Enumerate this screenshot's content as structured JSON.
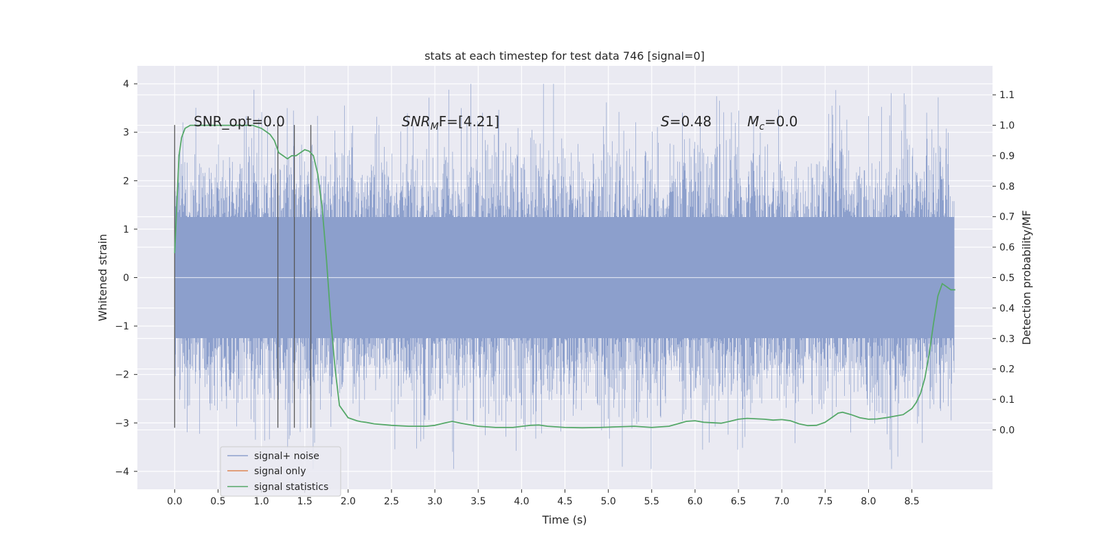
{
  "chart_data": {
    "type": "line",
    "title": "stats at each timestep for test data 746 [signal=0]",
    "xlabel": "Time (s)",
    "ylabel": "Whitened strain",
    "y2label": "Detection probability/MF",
    "xlim": [
      -0.43,
      9.43
    ],
    "ylim": [
      -4.37,
      4.37
    ],
    "y2lim": [
      -0.195,
      1.195
    ],
    "xticks": [
      "0.0",
      "0.5",
      "1.0",
      "1.5",
      "2.0",
      "2.5",
      "3.0",
      "3.5",
      "4.0",
      "4.5",
      "5.0",
      "5.5",
      "6.0",
      "6.5",
      "7.0",
      "7.5",
      "8.0",
      "8.5"
    ],
    "yticks": [
      "4",
      "3",
      "2",
      "1",
      "0",
      "−1",
      "−2",
      "−3",
      "−4"
    ],
    "y2ticks": [
      "1.1",
      "1.0",
      "0.9",
      "0.8",
      "0.7",
      "0.6",
      "0.5",
      "0.4",
      "0.3",
      "0.2",
      "0.1",
      "0.0"
    ],
    "grid": true,
    "legend_position": "lower-left",
    "annotations": {
      "snr_opt": "SNR_opt=0.0",
      "snr_mf_prefix": "SNR",
      "snr_mf_sub": "M",
      "snr_mf_suffix": "F=[4.21]",
      "s_var": "S",
      "s_value": "=0.48",
      "mc_var": "M",
      "mc_sub": "c",
      "mc_value": "=0.0"
    },
    "vlines": {
      "x": [
        0.0,
        1.19,
        1.38,
        1.57
      ],
      "ymin": -3.1,
      "ymax": 3.15,
      "color": "#555555"
    },
    "noise": {
      "name": "signal+ noise",
      "color": "#8c9fcc",
      "t_start": 0.0,
      "t_end": 8.99,
      "core_amplitude": 1.25,
      "sigma": 1.0,
      "seed": 746
    },
    "series": [
      {
        "name": "signal+ noise",
        "color": "#8c9fcc"
      },
      {
        "name": "signal only",
        "color": "#dd8452"
      },
      {
        "name": "signal statistics",
        "color": "#55a868",
        "axis": "right",
        "x": [
          0.0,
          0.05,
          0.08,
          0.12,
          0.18,
          0.3,
          0.5,
          0.7,
          0.9,
          1.0,
          1.05,
          1.1,
          1.15,
          1.2,
          1.25,
          1.3,
          1.35,
          1.4,
          1.45,
          1.5,
          1.55,
          1.6,
          1.65,
          1.7,
          1.75,
          1.8,
          1.85,
          1.9,
          1.95,
          2.0,
          2.05,
          2.1,
          2.15,
          2.2,
          2.3,
          2.5,
          2.7,
          2.9,
          3.0,
          3.1,
          3.2,
          3.3,
          3.5,
          3.7,
          3.9,
          4.1,
          4.2,
          4.3,
          4.5,
          4.7,
          4.9,
          5.1,
          5.3,
          5.5,
          5.7,
          5.8,
          5.9,
          6.0,
          6.1,
          6.3,
          6.4,
          6.5,
          6.6,
          6.8,
          6.9,
          7.0,
          7.1,
          7.2,
          7.3,
          7.4,
          7.5,
          7.6,
          7.65,
          7.7,
          7.8,
          7.9,
          8.0,
          8.1,
          8.2,
          8.3,
          8.4,
          8.5,
          8.55,
          8.6,
          8.65,
          8.7,
          8.75,
          8.8,
          8.85,
          8.9,
          8.95,
          9.0
        ],
        "values": [
          0.58,
          0.9,
          0.96,
          0.99,
          1.0,
          1.0,
          1.0,
          1.0,
          1.0,
          0.99,
          0.98,
          0.97,
          0.95,
          0.91,
          0.9,
          0.89,
          0.9,
          0.9,
          0.91,
          0.92,
          0.915,
          0.9,
          0.84,
          0.73,
          0.56,
          0.36,
          0.2,
          0.08,
          0.06,
          0.04,
          0.035,
          0.03,
          0.027,
          0.025,
          0.02,
          0.015,
          0.012,
          0.012,
          0.015,
          0.022,
          0.028,
          0.022,
          0.012,
          0.008,
          0.008,
          0.015,
          0.016,
          0.012,
          0.008,
          0.007,
          0.008,
          0.01,
          0.012,
          0.008,
          0.012,
          0.02,
          0.028,
          0.03,
          0.025,
          0.022,
          0.028,
          0.035,
          0.038,
          0.035,
          0.032,
          0.034,
          0.03,
          0.02,
          0.014,
          0.015,
          0.025,
          0.045,
          0.055,
          0.058,
          0.05,
          0.04,
          0.035,
          0.036,
          0.04,
          0.045,
          0.05,
          0.07,
          0.09,
          0.12,
          0.17,
          0.25,
          0.35,
          0.44,
          0.48,
          0.47,
          0.46,
          0.46
        ]
      }
    ]
  }
}
